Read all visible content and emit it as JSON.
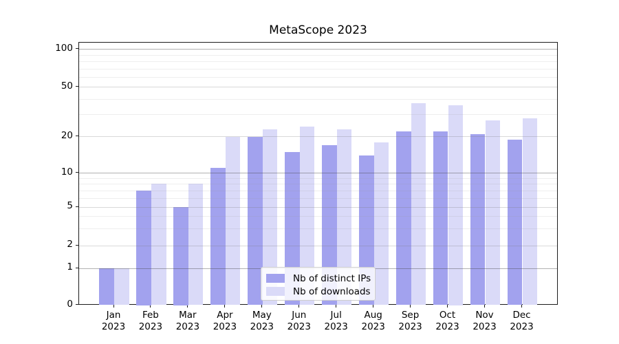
{
  "title": "MetaScope 2023",
  "chart_data": {
    "type": "bar",
    "title": "MetaScope 2023",
    "categories": [
      "Jan 2023",
      "Feb 2023",
      "Mar 2023",
      "Apr 2023",
      "May 2023",
      "Jun 2023",
      "Jul 2023",
      "Aug 2023",
      "Sep 2023",
      "Oct 2023",
      "Nov 2023",
      "Dec 2023"
    ],
    "x_tick_months": [
      "Jan",
      "Feb",
      "Mar",
      "Apr",
      "May",
      "Jun",
      "Jul",
      "Aug",
      "Sep",
      "Oct",
      "Nov",
      "Dec"
    ],
    "x_tick_year": "2023",
    "series": [
      {
        "name": "Nb of distinct IPs",
        "color": "#a2a2ee",
        "values": [
          1,
          7,
          5,
          11,
          20,
          15,
          17,
          14,
          22,
          22,
          21,
          19
        ]
      },
      {
        "name": "Nb of downloads",
        "color": "#dadaf8",
        "values": [
          1,
          8,
          8,
          20,
          23,
          24,
          23,
          18,
          37,
          36,
          27,
          28
        ]
      }
    ],
    "yscale": "symlog",
    "y_ticks": [
      0,
      1,
      2,
      5,
      10,
      20,
      50,
      100
    ],
    "ylim": [
      0,
      113
    ],
    "grid": true,
    "legend_position": "lower center",
    "axis_color": "#1a1a1a"
  }
}
